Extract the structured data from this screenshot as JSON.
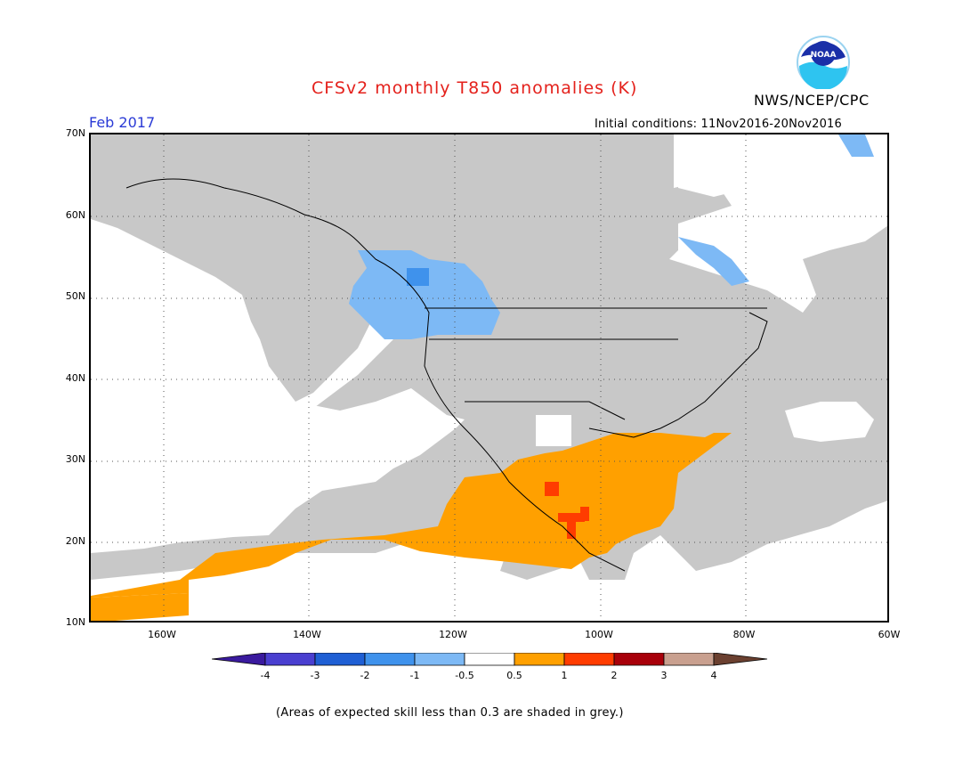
{
  "header": {
    "title": "CFSv2 monthly T850 anomalies (K)",
    "agency": "NWS/NCEP/CPC",
    "valid_month": "Feb 2017",
    "initial_conditions": "Initial conditions: 11Nov2016-20Nov2016",
    "logo_text": "NOAA"
  },
  "map": {
    "lat_labels": [
      "70N",
      "60N",
      "50N",
      "40N",
      "30N",
      "20N",
      "10N"
    ],
    "lon_labels": [
      "160W",
      "140W",
      "120W",
      "100W",
      "80W",
      "60W"
    ]
  },
  "colorbar": {
    "labels": [
      "-4",
      "-3",
      "-2",
      "-1",
      "-0.5",
      "0.5",
      "1",
      "2",
      "3",
      "4"
    ],
    "colors": [
      "#3a1a9e",
      "#4a3fd0",
      "#1f5fd4",
      "#3f92ec",
      "#7db9f5",
      "#ffffff",
      "#ffa000",
      "#ff3c00",
      "#a8000a",
      "#c9a08f",
      "#6b4030"
    ]
  },
  "footnote": "(Areas of expected skill less than 0.3 are shaded in grey.)"
}
